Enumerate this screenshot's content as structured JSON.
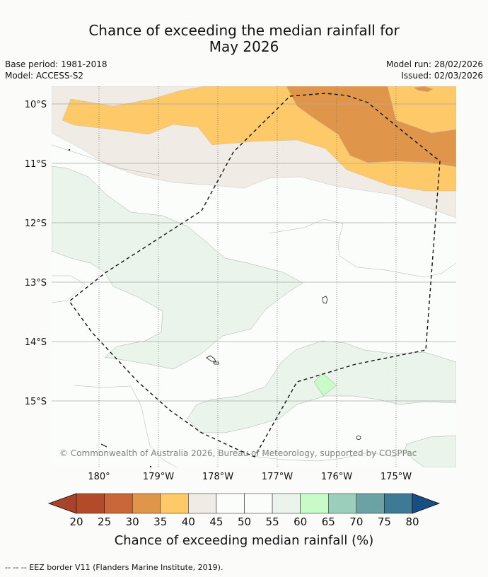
{
  "title": {
    "line1": "Chance of exceeding the median rainfall for",
    "line2": "May 2026"
  },
  "meta": {
    "base_period": "Base period: 1981-2018",
    "model": "Model: ACCESS-S2",
    "model_run": "Model run: 28/02/2026",
    "issued": "Issued: 02/03/2026"
  },
  "map": {
    "lat_labels": [
      "10°S",
      "11°S",
      "12°S",
      "13°S",
      "14°S",
      "15°S"
    ],
    "lon_labels": [
      "180°",
      "179°W",
      "178°W",
      "177°W",
      "176°W",
      "175°W"
    ],
    "copyright": "© Commonwealth of Australia 2026, Bureau of Meteorology, supported by COSPPac"
  },
  "colorbar": {
    "ticks": [
      "20",
      "25",
      "30",
      "35",
      "40",
      "45",
      "50",
      "55",
      "60",
      "65",
      "70",
      "75",
      "80"
    ],
    "label": "Chance of exceeding median rainfall (%)",
    "colors": [
      "#a8432a",
      "#b34a2a",
      "#c9663a",
      "#e0964a",
      "#fdc969",
      "#f1ebe6",
      "#fbfdfb",
      "#fbfdfb",
      "#eaf4ea",
      "#c8fbc8",
      "#9ccfbb",
      "#6da2a5",
      "#3f7a94",
      "#174e83"
    ]
  },
  "footer": "--  --  -- EEZ border V11 (Flanders Marine Institute, 2019)."
}
